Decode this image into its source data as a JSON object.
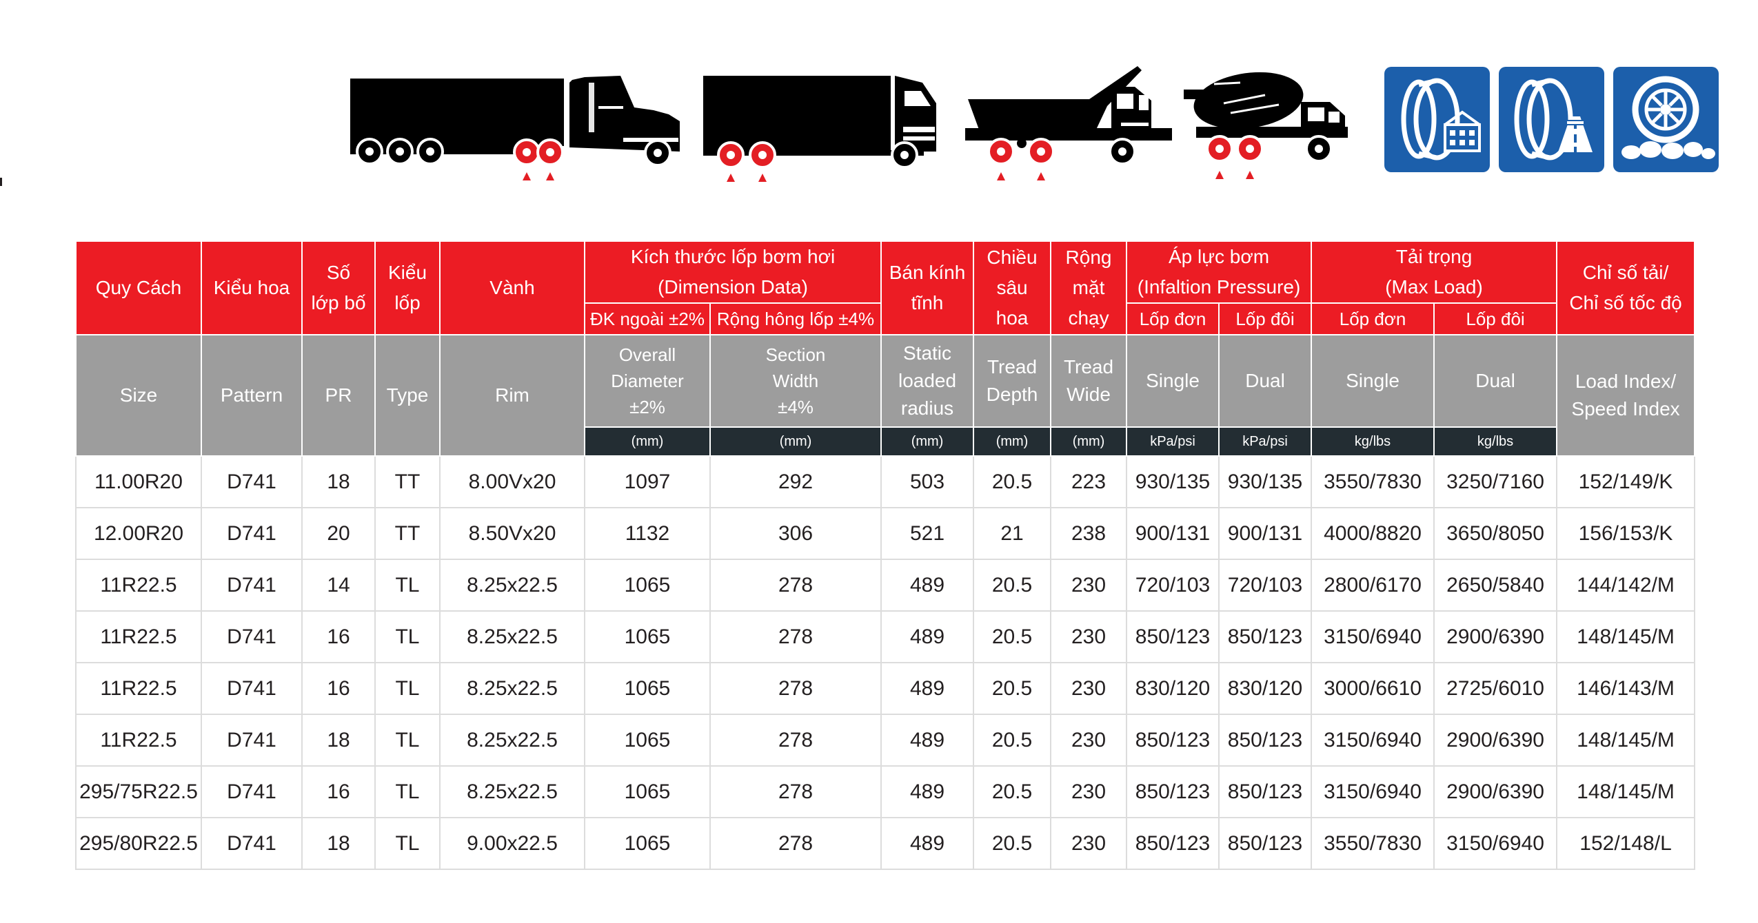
{
  "colors": {
    "header_red": "#ec1c24",
    "header_gray": "#9d9d9d",
    "unit_bar": "#232d33",
    "badge_blue": "#1c5fab",
    "tire_dot": "#e31e24"
  },
  "vehicles": [
    {
      "icon": "semi-trailer-truck-icon"
    },
    {
      "icon": "box-truck-icon"
    },
    {
      "icon": "dump-truck-icon"
    },
    {
      "icon": "concrete-mixer-truck-icon"
    }
  ],
  "badges": [
    {
      "icon": "urban-road-tire-icon"
    },
    {
      "icon": "highway-tire-icon"
    },
    {
      "icon": "off-road-wheel-icon"
    }
  ],
  "header": {
    "vi": {
      "size": "Quy Cách",
      "pattern": "Kiểu hoa",
      "pr_1": "Số",
      "pr_2": "lớp bố",
      "type_1": "Kiểu",
      "type_2": "lốp",
      "rim": "Vành",
      "dimension_1": "Kích thước lốp bơm hơi",
      "dimension_2": "(Dimension Data)",
      "dimension_od": "ĐK ngoài ±2%",
      "dimension_sw": "Rộng hông lốp ±4%",
      "radius_1": "Bán kính",
      "radius_2": "tĩnh",
      "depth_1": "Chiều",
      "depth_2": "sâu",
      "depth_3": "hoa",
      "wide_1": "Rộng",
      "wide_2": "mặt",
      "wide_3": "chạy",
      "pressure_1": "Áp lực bơm",
      "pressure_2": "(Infaltion Pressure)",
      "pressure_single": "Lốp đơn",
      "pressure_dual": "Lốp đôi",
      "load_1": "Tải trọng",
      "load_2": "(Max Load)",
      "load_single": "Lốp đơn",
      "load_dual": "Lốp đôi",
      "index_1": "Chỉ số tải/",
      "index_2": "Chỉ số tốc độ"
    },
    "en": {
      "size": "Size",
      "pattern": "Pattern",
      "pr": "PR",
      "type": "Type",
      "rim": "Rim",
      "od_1": "Overall",
      "od_2": "Diameter",
      "od_3": "±2%",
      "sw_1": "Section",
      "sw_2": "Width",
      "sw_3": "±4%",
      "radius_1": "Static",
      "radius_2": "loaded",
      "radius_3": "radius",
      "depth_1": "Tread",
      "depth_2": "Depth",
      "wide_1": "Tread",
      "wide_2": "Wide",
      "pressure_single": "Single",
      "pressure_dual": "Dual",
      "load_single": "Single",
      "load_dual": "Dual",
      "index_1": "Load Index/",
      "index_2": "Speed Index"
    },
    "units": {
      "od": "(mm)",
      "sw": "(mm)",
      "radius": "(mm)",
      "depth": "(mm)",
      "wide": "(mm)",
      "pressure_single": "kPa/psi",
      "pressure_dual": "kPa/psi",
      "load_single": "kg/lbs",
      "load_dual": "kg/lbs"
    }
  },
  "rows": [
    {
      "size": "11.00R20",
      "pattern": "D741",
      "pr": "18",
      "type": "TT",
      "rim": "8.00Vx20",
      "od": "1097",
      "sw": "292",
      "radius": "503",
      "depth": "20.5",
      "wide": "223",
      "p_single": "930/135",
      "p_dual": "930/135",
      "l_single": "3550/7830",
      "l_dual": "3250/7160",
      "index": "152/149/K"
    },
    {
      "size": "12.00R20",
      "pattern": "D741",
      "pr": "20",
      "type": "TT",
      "rim": "8.50Vx20",
      "od": "1132",
      "sw": "306",
      "radius": "521",
      "depth": "21",
      "wide": "238",
      "p_single": "900/131",
      "p_dual": "900/131",
      "l_single": "4000/8820",
      "l_dual": "3650/8050",
      "index": "156/153/K"
    },
    {
      "size": "11R22.5",
      "pattern": "D741",
      "pr": "14",
      "type": "TL",
      "rim": "8.25x22.5",
      "od": "1065",
      "sw": "278",
      "radius": "489",
      "depth": "20.5",
      "wide": "230",
      "p_single": "720/103",
      "p_dual": "720/103",
      "l_single": "2800/6170",
      "l_dual": "2650/5840",
      "index": "144/142/M"
    },
    {
      "size": "11R22.5",
      "pattern": "D741",
      "pr": "16",
      "type": "TL",
      "rim": "8.25x22.5",
      "od": "1065",
      "sw": "278",
      "radius": "489",
      "depth": "20.5",
      "wide": "230",
      "p_single": "850/123",
      "p_dual": "850/123",
      "l_single": "3150/6940",
      "l_dual": "2900/6390",
      "index": "148/145/M"
    },
    {
      "size": "11R22.5",
      "pattern": "D741",
      "pr": "16",
      "type": "TL",
      "rim": "8.25x22.5",
      "od": "1065",
      "sw": "278",
      "radius": "489",
      "depth": "20.5",
      "wide": "230",
      "p_single": "830/120",
      "p_dual": "830/120",
      "l_single": "3000/6610",
      "l_dual": "2725/6010",
      "index": "146/143/M"
    },
    {
      "size": "11R22.5",
      "pattern": "D741",
      "pr": "18",
      "type": "TL",
      "rim": "8.25x22.5",
      "od": "1065",
      "sw": "278",
      "radius": "489",
      "depth": "20.5",
      "wide": "230",
      "p_single": "850/123",
      "p_dual": "850/123",
      "l_single": "3150/6940",
      "l_dual": "2900/6390",
      "index": "148/145/M"
    },
    {
      "size": "295/75R22.5",
      "pattern": "D741",
      "pr": "16",
      "type": "TL",
      "rim": "8.25x22.5",
      "od": "1065",
      "sw": "278",
      "radius": "489",
      "depth": "20.5",
      "wide": "230",
      "p_single": "850/123",
      "p_dual": "850/123",
      "l_single": "3150/6940",
      "l_dual": "2900/6390",
      "index": "148/145/M"
    },
    {
      "size": "295/80R22.5",
      "pattern": "D741",
      "pr": "18",
      "type": "TL",
      "rim": "9.00x22.5",
      "od": "1065",
      "sw": "278",
      "radius": "489",
      "depth": "20.5",
      "wide": "230",
      "p_single": "850/123",
      "p_dual": "850/123",
      "l_single": "3550/7830",
      "l_dual": "3150/6940",
      "index": "152/148/L"
    }
  ]
}
